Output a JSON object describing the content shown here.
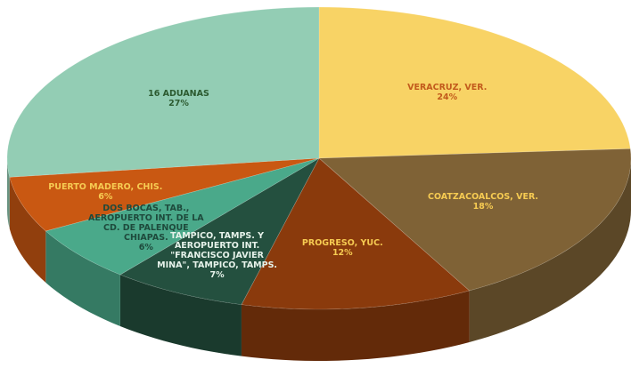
{
  "chart_data": {
    "type": "pie3d",
    "categories": [
      "VERACRUZ, VER.",
      "COATZACOALCOS, VER.",
      "PROGRESO, YUC.",
      "TAMPICO, TAMPS. Y AEROPUERTO INT. \"FRANCISCO JAVIER MINA\", TAMPICO, TAMPS.",
      "DOS BOCAS, TAB., AEROPUERTO INT. DE LA CD. DE PALENQUE CHIAPAS.",
      "PUERTO MADERO, CHIS.",
      "16 ADUANAS"
    ],
    "values": [
      24,
      18,
      12,
      7,
      6,
      6,
      27
    ],
    "value_labels": [
      "24%",
      "18%",
      "12%",
      "7%",
      "6%",
      "6%",
      "27%"
    ],
    "colors": [
      "#f8d365",
      "#7f6236",
      "#8a3a0c",
      "#24503f",
      "#4aa98a",
      "#c95812",
      "#93cdb4"
    ],
    "label_colors": [
      "#c25a1c",
      "#f6cb52",
      "#f6cb52",
      "#e6f2ea",
      "#1e4a3c",
      "#f6cb52",
      "#2c5a30"
    ]
  }
}
